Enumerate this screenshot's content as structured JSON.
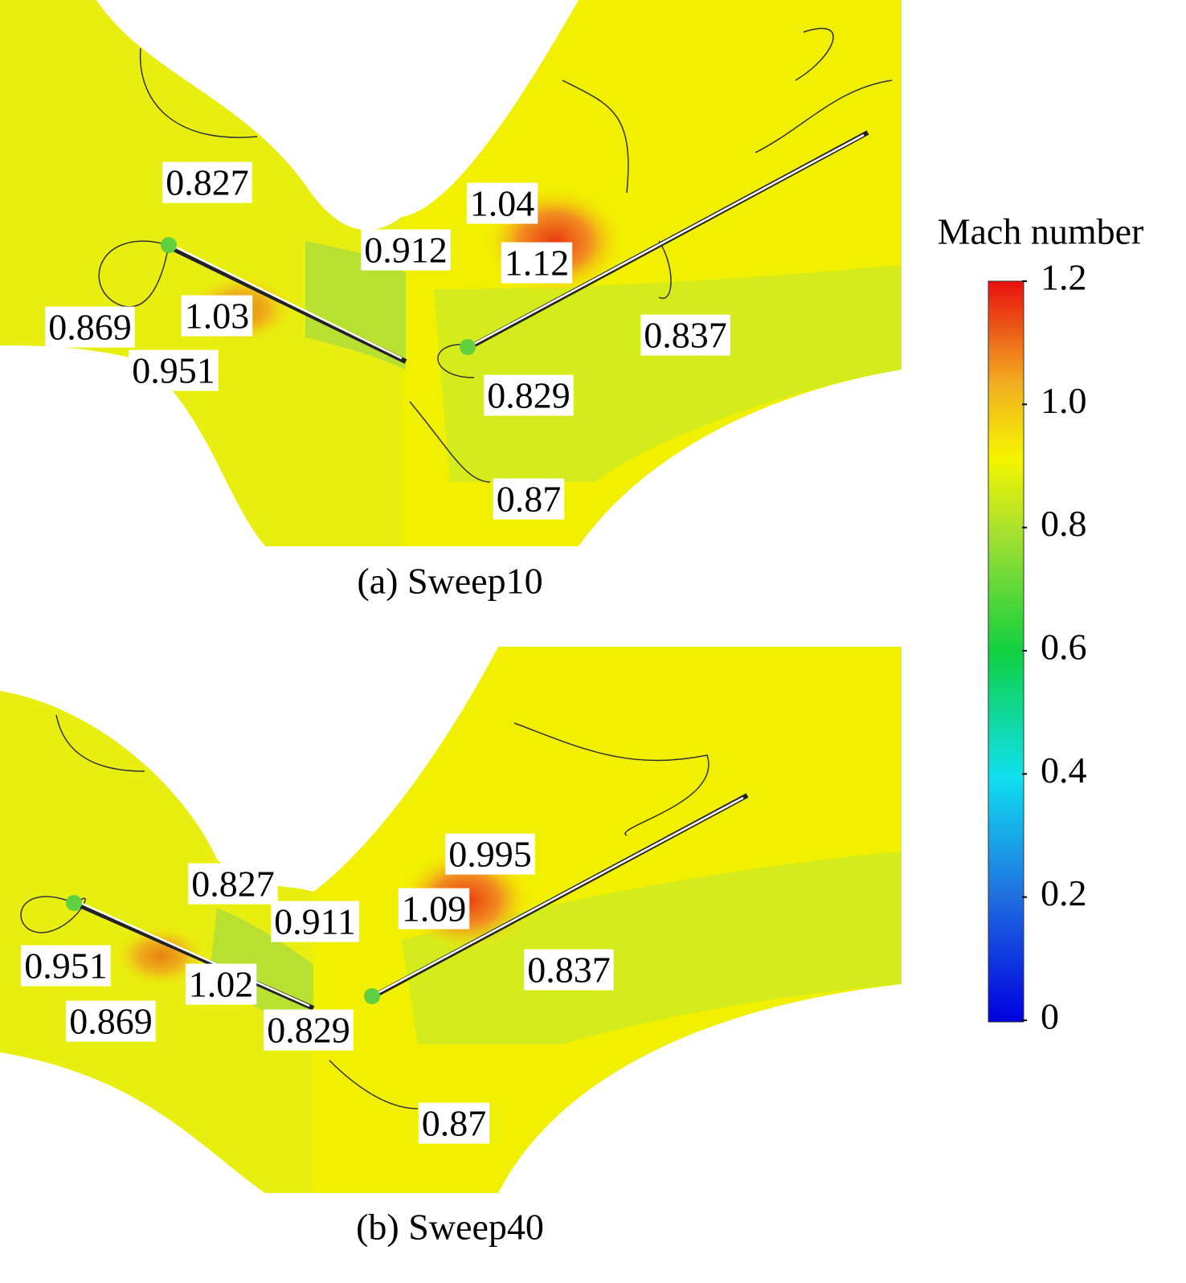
{
  "panels": [
    {
      "caption": "(a) Sweep10",
      "contour_labels": [
        "0.827",
        "1.04",
        "0.912",
        "1.12",
        "0.869",
        "1.03",
        "0.951",
        "0.837",
        "0.829",
        "0.87"
      ]
    },
    {
      "caption": "(b) Sweep40",
      "contour_labels": [
        "0.827",
        "0.995",
        "0.911",
        "1.09",
        "0.951",
        "1.02",
        "0.837",
        "0.869",
        "0.829",
        "0.87"
      ]
    }
  ],
  "colorbar": {
    "title": "Mach number",
    "ticks": [
      "1.2",
      "1.0",
      "0.8",
      "0.6",
      "0.4",
      "0.2",
      "0"
    ]
  }
}
